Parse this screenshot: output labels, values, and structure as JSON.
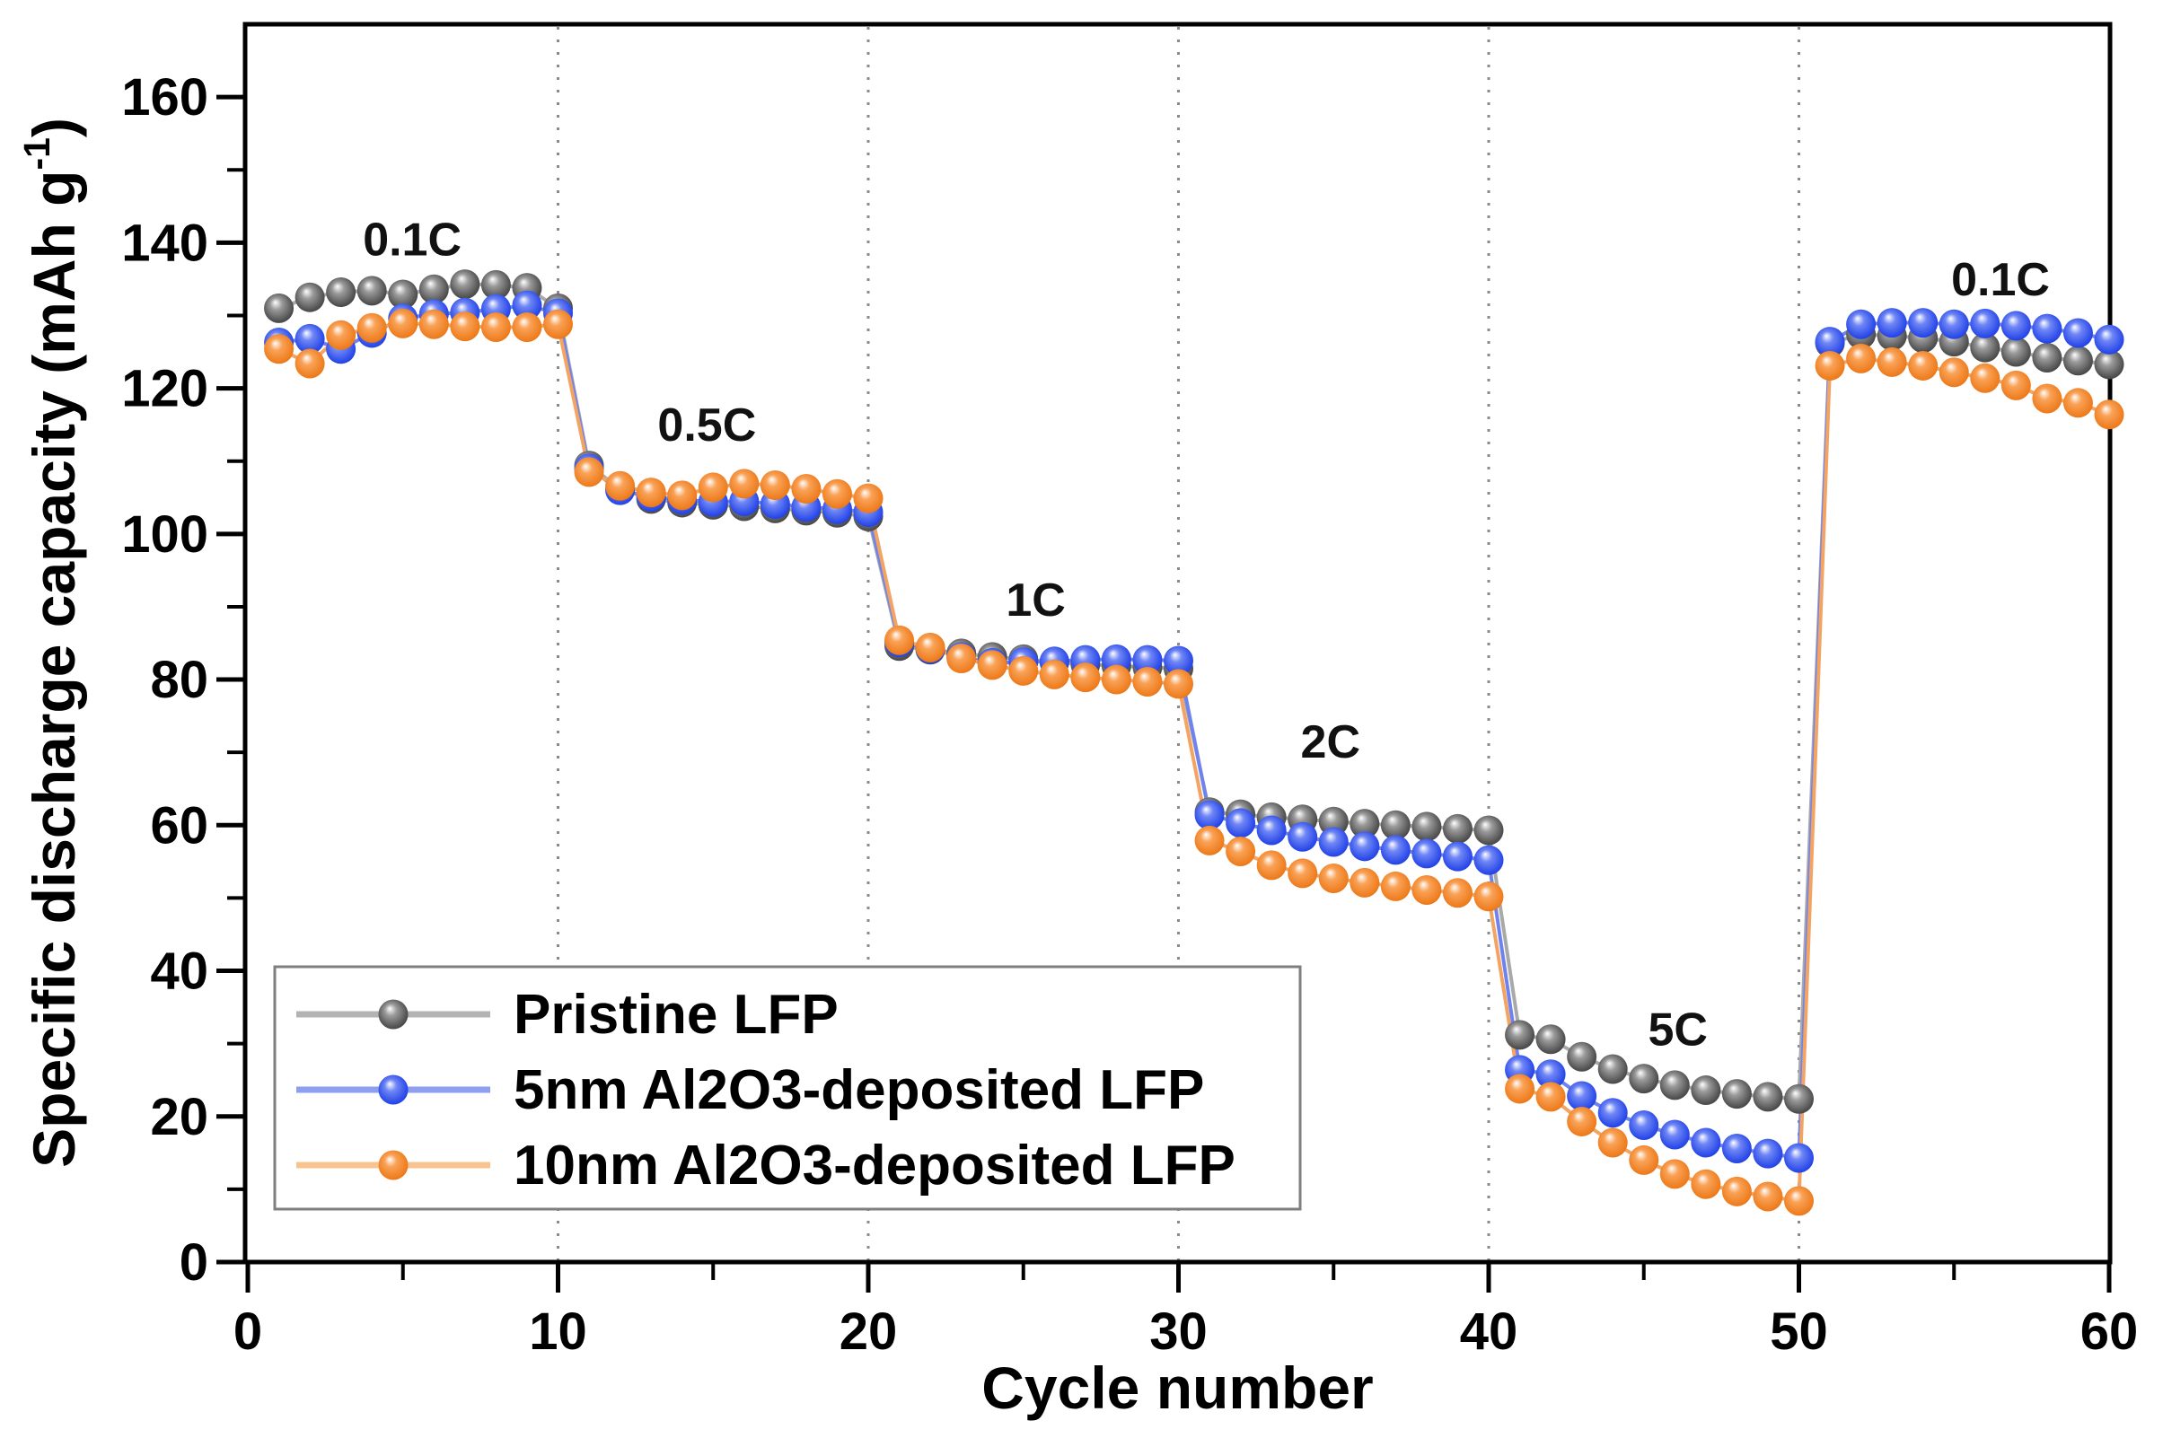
{
  "figure": {
    "xlabel": "Cycle number",
    "ylabel_main": "Specific discharge capacity (mAh g",
    "ylabel_sup": "-1",
    "ylabel_end": ")"
  },
  "chart_data": {
    "type": "scatter",
    "title": "",
    "xlabel": "Cycle number",
    "ylabel": "Specific discharge capacity (mAh g⁻¹)",
    "xlim": [
      0,
      60
    ],
    "ylim": [
      0,
      170
    ],
    "x_ticks": [
      0,
      10,
      20,
      30,
      40,
      50,
      60
    ],
    "x_minor_ticks": [
      5,
      15,
      25,
      35,
      45,
      55
    ],
    "y_ticks": [
      0,
      20,
      40,
      60,
      80,
      100,
      120,
      140,
      160
    ],
    "y_minor_ticks": [
      10,
      30,
      50,
      70,
      90,
      110,
      130,
      150
    ],
    "gridlines_x": [
      10,
      20,
      30,
      40,
      50
    ],
    "grid_color": "#8a8a8a",
    "legend_position": "lower-left",
    "legend_border_color": "#7f7f7f",
    "rate_annotations": [
      {
        "label": "0.1C",
        "x": 5.3,
        "y": 140.5
      },
      {
        "label": "0.5C",
        "x": 14.8,
        "y": 115.0
      },
      {
        "label": "1C",
        "x": 25.4,
        "y": 91.0
      },
      {
        "label": "2C",
        "x": 34.9,
        "y": 71.5
      },
      {
        "label": "5C",
        "x": 46.1,
        "y": 32.0
      },
      {
        "label": "0.1C",
        "x": 56.5,
        "y": 135.0
      }
    ],
    "x": [
      1,
      2,
      3,
      4,
      5,
      6,
      7,
      8,
      9,
      10,
      11,
      12,
      13,
      14,
      15,
      16,
      17,
      18,
      19,
      20,
      21,
      22,
      23,
      24,
      25,
      26,
      27,
      28,
      29,
      30,
      31,
      32,
      33,
      34,
      35,
      36,
      37,
      38,
      39,
      40,
      41,
      42,
      43,
      44,
      45,
      46,
      47,
      48,
      49,
      50,
      51,
      52,
      53,
      54,
      55,
      56,
      57,
      58,
      59,
      60
    ],
    "series": [
      {
        "name": "Pristine LFP",
        "color": "#4d4d4d",
        "color_light": "#9a9a9a",
        "color_dark": "#262626",
        "line_color": "#a9a9a9",
        "legend_line_color": "#b3b3b3",
        "values": [
          131.0,
          132.5,
          133.2,
          133.4,
          132.9,
          133.6,
          134.3,
          134.2,
          133.8,
          131.0,
          109.4,
          106.2,
          104.8,
          104.3,
          104.0,
          103.8,
          103.5,
          103.2,
          102.9,
          102.4,
          84.6,
          84.1,
          83.6,
          83.1,
          82.8,
          82.4,
          82.1,
          81.9,
          81.7,
          81.5,
          61.8,
          61.5,
          61.1,
          60.8,
          60.5,
          60.2,
          60.0,
          59.8,
          59.5,
          59.3,
          31.2,
          30.6,
          28.2,
          26.5,
          25.2,
          24.3,
          23.6,
          23.1,
          22.7,
          22.4,
          126.2,
          127.4,
          127.2,
          126.9,
          126.4,
          125.6,
          125.0,
          124.2,
          123.8,
          123.3
        ]
      },
      {
        "name": "5nm Al2O3-deposited LFP",
        "color": "#2747e8",
        "color_light": "#6f86f5",
        "color_dark": "#0f23a8",
        "line_color": "#6f83ee",
        "legend_line_color": "#8e9ff2",
        "values": [
          126.3,
          126.8,
          125.4,
          127.6,
          129.6,
          130.2,
          130.4,
          130.9,
          131.4,
          130.3,
          109.0,
          106.0,
          105.1,
          104.7,
          104.4,
          104.5,
          104.1,
          103.7,
          103.4,
          103.0,
          85.1,
          84.2,
          83.1,
          82.3,
          82.4,
          82.5,
          82.7,
          82.8,
          82.7,
          82.6,
          61.4,
          60.3,
          59.3,
          58.4,
          57.7,
          57.1,
          56.6,
          56.1,
          55.7,
          55.2,
          26.4,
          25.8,
          22.8,
          20.5,
          18.8,
          17.5,
          16.4,
          15.6,
          14.9,
          14.3,
          126.4,
          128.8,
          129.0,
          129.0,
          128.8,
          128.9,
          128.6,
          128.2,
          127.6,
          126.7
        ]
      },
      {
        "name": "10nm Al2O3-deposited LFP",
        "color": "#ee7c1d",
        "color_light": "#f9a257",
        "color_dark": "#b35a07",
        "line_color": "#f3a463",
        "legend_line_color": "#f7c491",
        "values": [
          125.4,
          123.4,
          127.3,
          128.3,
          128.9,
          128.8,
          128.5,
          128.4,
          128.4,
          128.8,
          108.5,
          106.6,
          105.7,
          105.3,
          106.4,
          106.9,
          106.7,
          106.2,
          105.5,
          104.9,
          85.4,
          84.4,
          82.9,
          82.0,
          81.2,
          80.7,
          80.3,
          80.0,
          79.7,
          79.4,
          57.9,
          56.4,
          54.5,
          53.4,
          52.7,
          52.1,
          51.6,
          51.1,
          50.7,
          50.2,
          23.8,
          22.7,
          19.3,
          16.4,
          14.0,
          12.1,
          10.7,
          9.7,
          9.0,
          8.4,
          123.1,
          124.1,
          123.6,
          123.1,
          122.2,
          121.4,
          120.4,
          118.6,
          118.0,
          116.4
        ]
      }
    ]
  }
}
